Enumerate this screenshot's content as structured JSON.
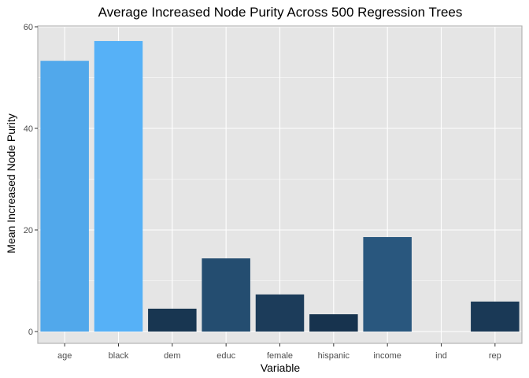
{
  "chart_data": {
    "type": "bar",
    "title": "Average Increased Node Purity Across 500 Regression Trees",
    "xlabel": "Variable",
    "ylabel": "Mean Increased Node Purity",
    "categories": [
      "age",
      "black",
      "dem",
      "educ",
      "female",
      "hispanic",
      "income",
      "ind",
      "rep"
    ],
    "values": [
      53.3,
      57.2,
      4.5,
      14.4,
      7.3,
      3.4,
      18.6,
      0.0,
      5.9
    ],
    "ylim": [
      0,
      60
    ],
    "yticks": [
      "0",
      "20",
      "40",
      "60"
    ],
    "grid": true,
    "legend": "none",
    "colors": {
      "panel_background": "#e5e5e5",
      "grid_major": "#ffffff",
      "bar_gradient_low": "#132b43",
      "bar_gradient_high": "#56b1f7"
    }
  }
}
